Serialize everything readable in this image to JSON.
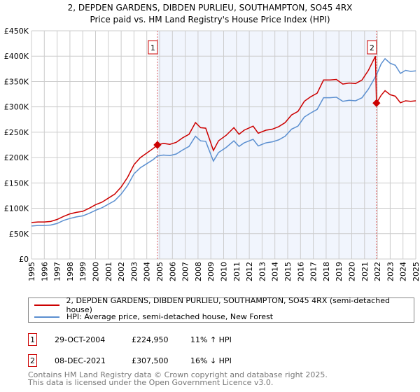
{
  "chart_data": {
    "type": "line",
    "title": "2, DEPDEN GARDENS, DIBDEN PURLIEU, SOUTHAMPTON, SO45 4RX",
    "subtitle": "Price paid vs. HM Land Registry's House Price Index (HPI)",
    "xlim": [
      1995,
      2025
    ],
    "ylim": [
      0,
      450000
    ],
    "grid": true,
    "x_ticks": [
      "1995",
      "1996",
      "1997",
      "1998",
      "1999",
      "2000",
      "2001",
      "2002",
      "2003",
      "2004",
      "2005",
      "2006",
      "2007",
      "2008",
      "2009",
      "2010",
      "2011",
      "2012",
      "2013",
      "2014",
      "2015",
      "2016",
      "2017",
      "2018",
      "2019",
      "2020",
      "2021",
      "2022",
      "2023",
      "2024",
      "2025"
    ],
    "y_ticks": [
      {
        "v": 0,
        "label": "£0"
      },
      {
        "v": 50000,
        "label": "£50K"
      },
      {
        "v": 100000,
        "label": "£100K"
      },
      {
        "v": 150000,
        "label": "£150K"
      },
      {
        "v": 200000,
        "label": "£200K"
      },
      {
        "v": 250000,
        "label": "£250K"
      },
      {
        "v": 300000,
        "label": "£300K"
      },
      {
        "v": 350000,
        "label": "£350K"
      },
      {
        "v": 400000,
        "label": "£400K"
      },
      {
        "v": 450000,
        "label": "£450K"
      }
    ],
    "shaded_range": [
      2004.83,
      2021.93
    ],
    "series": [
      {
        "name": "2, DEPDEN GARDENS, DIBDEN PURLIEU, SOUTHAMPTON, SO45 4RX (semi-detached house)",
        "color": "#cc0000",
        "points": [
          [
            1995,
            72
          ],
          [
            1995.5,
            73
          ],
          [
            1996,
            73
          ],
          [
            1996.5,
            74
          ],
          [
            1997,
            78
          ],
          [
            1997.5,
            84
          ],
          [
            1998,
            89
          ],
          [
            1998.5,
            92
          ],
          [
            1999,
            94
          ],
          [
            1999.5,
            100
          ],
          [
            2000,
            107
          ],
          [
            2000.5,
            112
          ],
          [
            2001,
            120
          ],
          [
            2001.5,
            128
          ],
          [
            2002,
            142
          ],
          [
            2002.5,
            161
          ],
          [
            2003,
            186
          ],
          [
            2003.5,
            200
          ],
          [
            2004,
            209
          ],
          [
            2004.5,
            218
          ],
          [
            2004.83,
            225
          ],
          [
            2005.3,
            228
          ],
          [
            2005.8,
            226
          ],
          [
            2006.3,
            230
          ],
          [
            2006.8,
            239
          ],
          [
            2007.3,
            246
          ],
          [
            2007.8,
            269
          ],
          [
            2008.2,
            259
          ],
          [
            2008.6,
            258
          ],
          [
            2009.2,
            214
          ],
          [
            2009.6,
            233
          ],
          [
            2010.2,
            244
          ],
          [
            2010.8,
            259
          ],
          [
            2011.2,
            246
          ],
          [
            2011.6,
            254
          ],
          [
            2012.3,
            262
          ],
          [
            2012.7,
            248
          ],
          [
            2013.3,
            254
          ],
          [
            2013.8,
            256
          ],
          [
            2014.3,
            261
          ],
          [
            2014.8,
            269
          ],
          [
            2015.3,
            284
          ],
          [
            2015.8,
            291
          ],
          [
            2016.3,
            311
          ],
          [
            2016.8,
            320
          ],
          [
            2017.3,
            327
          ],
          [
            2017.8,
            353
          ],
          [
            2018.3,
            353
          ],
          [
            2018.8,
            354
          ],
          [
            2019.3,
            345
          ],
          [
            2019.8,
            347
          ],
          [
            2020.3,
            346
          ],
          [
            2020.8,
            353
          ],
          [
            2021.3,
            372
          ],
          [
            2021.85,
            400
          ],
          [
            2021.93,
            307.5
          ],
          [
            2022.3,
            323
          ],
          [
            2022.6,
            332
          ],
          [
            2023,
            324
          ],
          [
            2023.4,
            321
          ],
          [
            2023.8,
            308
          ],
          [
            2024.2,
            312
          ],
          [
            2024.6,
            311
          ],
          [
            2025,
            312
          ]
        ]
      },
      {
        "name": "HPI: Average price, semi-detached house, New Forest",
        "color": "#5b8fd0",
        "points": [
          [
            1995,
            65
          ],
          [
            1995.5,
            66
          ],
          [
            1996,
            66
          ],
          [
            1996.5,
            67
          ],
          [
            1997,
            70
          ],
          [
            1997.5,
            76
          ],
          [
            1998,
            80
          ],
          [
            1998.5,
            83
          ],
          [
            1999,
            85
          ],
          [
            1999.5,
            90
          ],
          [
            2000,
            96
          ],
          [
            2000.5,
            101
          ],
          [
            2001,
            108
          ],
          [
            2001.5,
            115
          ],
          [
            2002,
            128
          ],
          [
            2002.5,
            145
          ],
          [
            2003,
            168
          ],
          [
            2003.5,
            180
          ],
          [
            2004,
            188
          ],
          [
            2004.5,
            196
          ],
          [
            2004.83,
            203
          ],
          [
            2005.3,
            205
          ],
          [
            2005.8,
            204
          ],
          [
            2006.3,
            207
          ],
          [
            2006.8,
            215
          ],
          [
            2007.3,
            222
          ],
          [
            2007.8,
            242
          ],
          [
            2008.2,
            233
          ],
          [
            2008.6,
            232
          ],
          [
            2009.2,
            193
          ],
          [
            2009.6,
            210
          ],
          [
            2010.2,
            220
          ],
          [
            2010.8,
            233
          ],
          [
            2011.2,
            222
          ],
          [
            2011.6,
            229
          ],
          [
            2012.3,
            236
          ],
          [
            2012.7,
            223
          ],
          [
            2013.3,
            229
          ],
          [
            2013.8,
            231
          ],
          [
            2014.3,
            235
          ],
          [
            2014.8,
            242
          ],
          [
            2015.3,
            256
          ],
          [
            2015.8,
            262
          ],
          [
            2016.3,
            280
          ],
          [
            2016.8,
            288
          ],
          [
            2017.3,
            295
          ],
          [
            2017.8,
            318
          ],
          [
            2018.3,
            318
          ],
          [
            2018.8,
            319
          ],
          [
            2019.3,
            311
          ],
          [
            2019.8,
            313
          ],
          [
            2020.3,
            312
          ],
          [
            2020.8,
            318
          ],
          [
            2021.3,
            335
          ],
          [
            2021.93,
            363
          ],
          [
            2022.3,
            385
          ],
          [
            2022.6,
            395
          ],
          [
            2023,
            386
          ],
          [
            2023.4,
            382
          ],
          [
            2023.8,
            366
          ],
          [
            2024.2,
            372
          ],
          [
            2024.6,
            370
          ],
          [
            2025,
            371
          ]
        ]
      }
    ],
    "value_unit": "thousands GBP",
    "annotations": [
      {
        "label": "1",
        "x": 2004.83,
        "y": 224.95
      },
      {
        "label": "2",
        "x": 2021.93,
        "y": 307.5
      }
    ]
  },
  "legend": {
    "items": [
      {
        "label": "2, DEPDEN GARDENS, DIBDEN PURLIEU, SOUTHAMPTON, SO45 4RX (semi-detached house)",
        "color": "#cc0000"
      },
      {
        "label": "HPI: Average price, semi-detached house, New Forest",
        "color": "#5b8fd0"
      }
    ]
  },
  "sales": [
    {
      "num": "1",
      "date": "29-OCT-2004",
      "price": "£224,950",
      "hpi": "11% ↑ HPI"
    },
    {
      "num": "2",
      "date": "08-DEC-2021",
      "price": "£307,500",
      "hpi": "16% ↓ HPI"
    }
  ],
  "footer": {
    "line1": "Contains HM Land Registry data © Crown copyright and database right 2025.",
    "line2": "This data is licensed under the Open Government Licence v3.0."
  }
}
